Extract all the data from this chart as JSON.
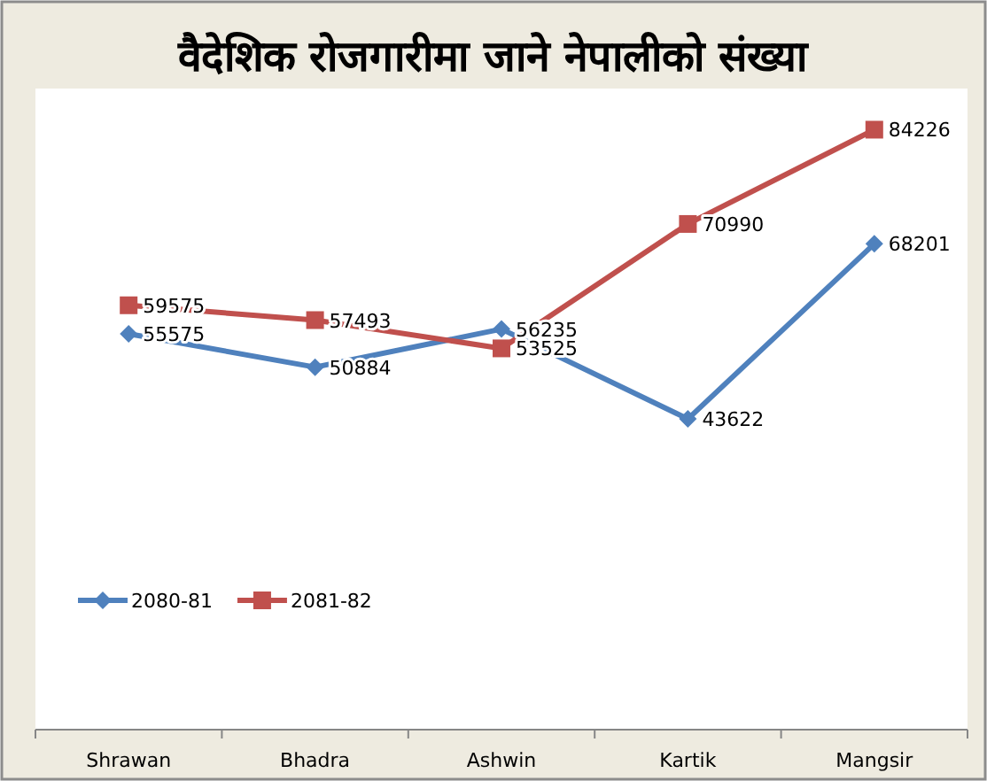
{
  "chart_data": {
    "type": "line",
    "title": "वैदेशिक रोजगारीमा जाने नेपालीको संख्या",
    "categories": [
      "Shrawan",
      "Bhadra",
      "Ashwin",
      "Kartik",
      "Mangsir"
    ],
    "series": [
      {
        "name": "2080-81",
        "color": "#4f81bd",
        "marker": "diamond",
        "values": [
          55575,
          50884,
          56235,
          43622,
          68201
        ]
      },
      {
        "name": "2081-82",
        "color": "#c0504d",
        "marker": "square",
        "values": [
          59575,
          57493,
          53525,
          70990,
          84226
        ]
      }
    ],
    "ylim": [
      0,
      90000
    ],
    "data_labels": true,
    "legend": "left"
  }
}
